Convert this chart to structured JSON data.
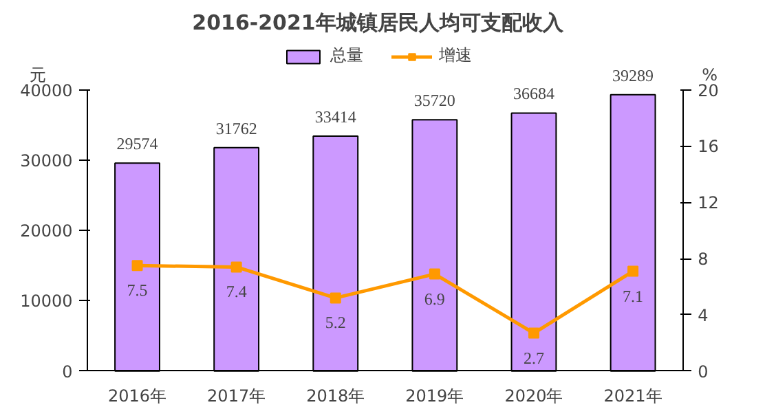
{
  "chart_data": {
    "type": "bar",
    "title": "2016-2021年城镇居民人均可支配收入",
    "categories": [
      "2016年",
      "2017年",
      "2018年",
      "2019年",
      "2020年",
      "2021年"
    ],
    "series": [
      {
        "name": "总量",
        "color": "#cc99ff",
        "values": [
          29574,
          31762,
          33414,
          35720,
          36684,
          39289
        ]
      },
      {
        "name": "增速",
        "type": "line",
        "color": "#ff9900",
        "axis": "y2",
        "values": [
          7.5,
          7.4,
          5.2,
          6.9,
          2.7,
          7.1
        ]
      }
    ],
    "ylabel": "元",
    "y2label": "%",
    "ylim": [
      0,
      40000
    ],
    "yticks": [
      0,
      10000,
      20000,
      30000,
      40000
    ],
    "y2lim": [
      0,
      20
    ],
    "y2ticks": [
      0,
      4,
      8,
      12,
      16,
      20
    ],
    "data_labels": true,
    "legend": "top",
    "grid": false,
    "marker": "square",
    "line_style": "solid"
  }
}
